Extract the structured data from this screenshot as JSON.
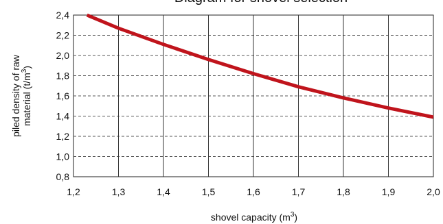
{
  "chart_data": {
    "type": "line",
    "title": "Diagram for shovel selection",
    "xlabel": "shovel capacity (m",
    "xlabel_sup": "3",
    "xlabel_end": ")",
    "ylabel_line1": "piled density of raw",
    "ylabel_line2": "material (t/m",
    "ylabel_sup": "3",
    "ylabel_end": ")",
    "xlim": [
      1.2,
      2.0
    ],
    "ylim": [
      0.8,
      2.4
    ],
    "x_ticks": [
      "1,2",
      "1,3",
      "1,4",
      "1,5",
      "1,6",
      "1,7",
      "1,8",
      "1,9",
      "2,0"
    ],
    "x_tick_values": [
      1.2,
      1.3,
      1.4,
      1.5,
      1.6,
      1.7,
      1.8,
      1.9,
      2.0
    ],
    "y_ticks": [
      "0,8",
      "1,0",
      "1,2",
      "1,4",
      "1,6",
      "1,8",
      "2,0",
      "2,2",
      "2,4"
    ],
    "y_tick_values": [
      0.8,
      1.0,
      1.2,
      1.4,
      1.6,
      1.8,
      2.0,
      2.2,
      2.4
    ],
    "grid": true,
    "series": [
      {
        "color": "#c0141c",
        "x": [
          1.23,
          1.3,
          1.4,
          1.5,
          1.6,
          1.7,
          1.8,
          1.9,
          2.0
        ],
        "y": [
          2.4,
          2.27,
          2.11,
          1.96,
          1.82,
          1.69,
          1.58,
          1.48,
          1.39
        ]
      }
    ]
  }
}
